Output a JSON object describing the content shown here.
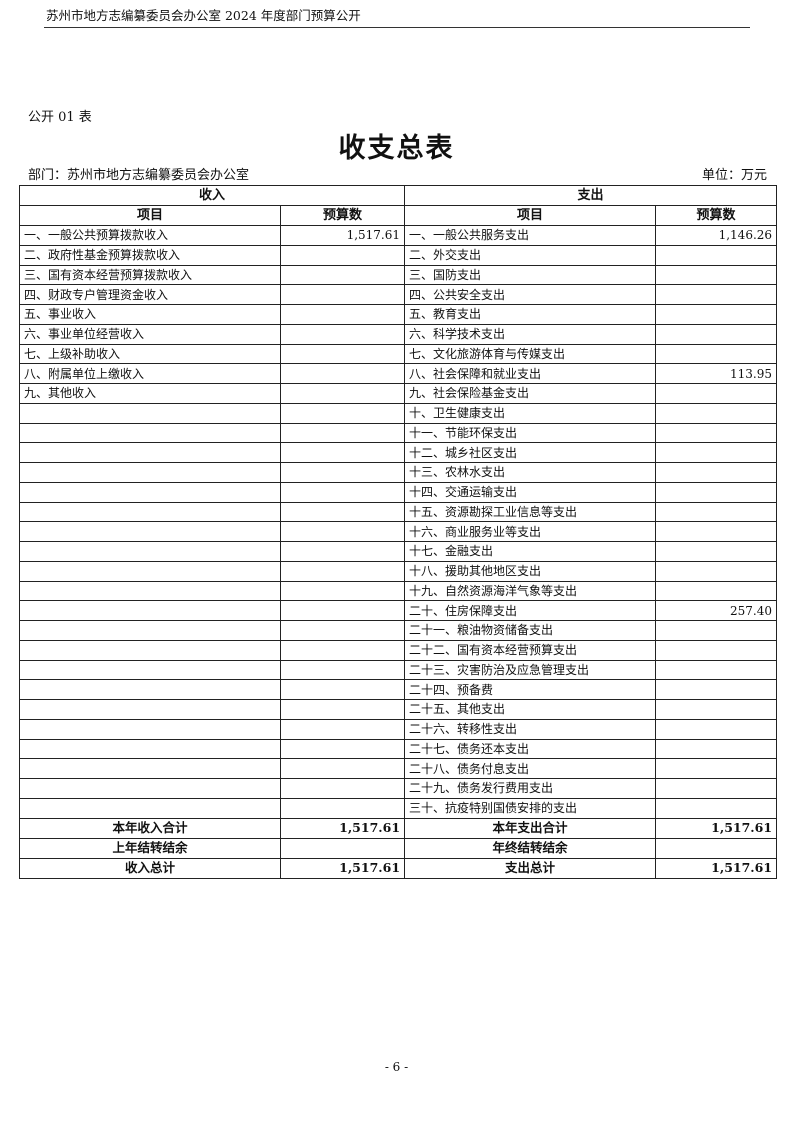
{
  "header": "苏州市地方志编纂委员会办公室 2024 年度部门预算公开",
  "form_no": "公开 01 表",
  "title": "收支总表",
  "department": "部门：苏州市地方志编纂委员会办公室",
  "unit": "单位：万元",
  "table": {
    "income_header": "收入",
    "expense_header": "支出",
    "col_item": "项目",
    "col_budget": "预算数",
    "rows": [
      {
        "income": "一、一般公共预算拨款收入",
        "income_value": "1,517.61",
        "expense": "一、一般公共服务支出",
        "expense_value": "1,146.26"
      },
      {
        "income": "二、政府性基金预算拨款收入",
        "income_value": "",
        "expense": "二、外交支出",
        "expense_value": ""
      },
      {
        "income": "三、国有资本经营预算拨款收入",
        "income_value": "",
        "expense": "三、国防支出",
        "expense_value": ""
      },
      {
        "income": "四、财政专户管理资金收入",
        "income_value": "",
        "expense": "四、公共安全支出",
        "expense_value": ""
      },
      {
        "income": "五、事业收入",
        "income_value": "",
        "expense": "五、教育支出",
        "expense_value": ""
      },
      {
        "income": "六、事业单位经营收入",
        "income_value": "",
        "expense": "六、科学技术支出",
        "expense_value": ""
      },
      {
        "income": "七、上级补助收入",
        "income_value": "",
        "expense": "七、文化旅游体育与传媒支出",
        "expense_value": ""
      },
      {
        "income": "八、附属单位上缴收入",
        "income_value": "",
        "expense": "八、社会保障和就业支出",
        "expense_value": "113.95"
      },
      {
        "income": "九、其他收入",
        "income_value": "",
        "expense": "九、社会保险基金支出",
        "expense_value": ""
      },
      {
        "income": "",
        "income_value": "",
        "expense": "十、卫生健康支出",
        "expense_value": ""
      },
      {
        "income": "",
        "income_value": "",
        "expense": "十一、节能环保支出",
        "expense_value": ""
      },
      {
        "income": "",
        "income_value": "",
        "expense": "十二、城乡社区支出",
        "expense_value": ""
      },
      {
        "income": "",
        "income_value": "",
        "expense": "十三、农林水支出",
        "expense_value": ""
      },
      {
        "income": "",
        "income_value": "",
        "expense": "十四、交通运输支出",
        "expense_value": ""
      },
      {
        "income": "",
        "income_value": "",
        "expense": "十五、资源勘探工业信息等支出",
        "expense_value": ""
      },
      {
        "income": "",
        "income_value": "",
        "expense": "十六、商业服务业等支出",
        "expense_value": ""
      },
      {
        "income": "",
        "income_value": "",
        "expense": "十七、金融支出",
        "expense_value": ""
      },
      {
        "income": "",
        "income_value": "",
        "expense": "十八、援助其他地区支出",
        "expense_value": ""
      },
      {
        "income": "",
        "income_value": "",
        "expense": "十九、自然资源海洋气象等支出",
        "expense_value": ""
      },
      {
        "income": "",
        "income_value": "",
        "expense": "二十、住房保障支出",
        "expense_value": "257.40"
      },
      {
        "income": "",
        "income_value": "",
        "expense": "二十一、粮油物资储备支出",
        "expense_value": ""
      },
      {
        "income": "",
        "income_value": "",
        "expense": "二十二、国有资本经营预算支出",
        "expense_value": ""
      },
      {
        "income": "",
        "income_value": "",
        "expense": "二十三、灾害防治及应急管理支出",
        "expense_value": ""
      },
      {
        "income": "",
        "income_value": "",
        "expense": "二十四、预备费",
        "expense_value": ""
      },
      {
        "income": "",
        "income_value": "",
        "expense": "二十五、其他支出",
        "expense_value": ""
      },
      {
        "income": "",
        "income_value": "",
        "expense": "二十六、转移性支出",
        "expense_value": ""
      },
      {
        "income": "",
        "income_value": "",
        "expense": "二十七、债务还本支出",
        "expense_value": ""
      },
      {
        "income": "",
        "income_value": "",
        "expense": "二十八、债务付息支出",
        "expense_value": ""
      },
      {
        "income": "",
        "income_value": "",
        "expense": "二十九、债务发行费用支出",
        "expense_value": ""
      },
      {
        "income": "",
        "income_value": "",
        "expense": "三十、抗疫特别国债安排的支出",
        "expense_value": ""
      }
    ],
    "totals": [
      {
        "income": "本年收入合计",
        "income_value": "1,517.61",
        "expense": "本年支出合计",
        "expense_value": "1,517.61"
      },
      {
        "income": "上年结转结余",
        "income_value": "",
        "expense": "年终结转结余",
        "expense_value": ""
      },
      {
        "income": "收入总计",
        "income_value": "1,517.61",
        "expense": "支出总计",
        "expense_value": "1,517.61"
      }
    ]
  },
  "page_number": "- 6 -"
}
